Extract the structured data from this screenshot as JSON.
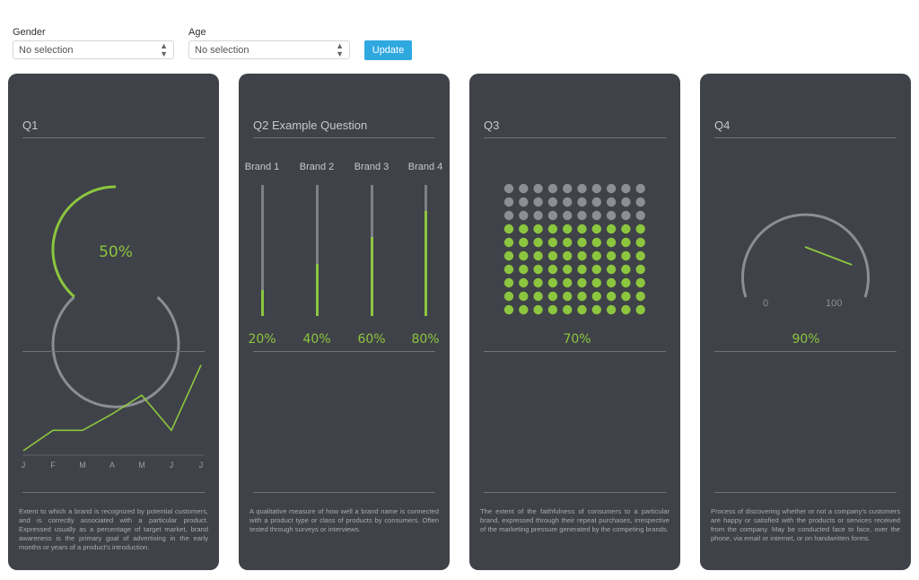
{
  "filters": {
    "gender": {
      "label": "Gender",
      "value": "No selection"
    },
    "age": {
      "label": "Age",
      "value": "No selection"
    },
    "update_label": "Update"
  },
  "colors": {
    "card_bg": "#3f4248",
    "accent": "#8cc63f",
    "button": "#2fa8e0",
    "muted": "#8b8e93"
  },
  "q1": {
    "title": "Q1",
    "gauge_percent": "50%",
    "gauge_value": 50,
    "chart_data": {
      "type": "line",
      "categories": [
        "J",
        "F",
        "M",
        "A",
        "M",
        "J",
        "J"
      ],
      "values": [
        0,
        25,
        25,
        45,
        68,
        25,
        105
      ],
      "title": "",
      "xlabel": "",
      "ylabel": "",
      "ylim": [
        0,
        110
      ],
      "grid": false
    },
    "description": "Extent to which a brand is recognized by potential customers, and is correctly associated with a particular product. Expressed usually as a percentage of target market, brand awareness is the primary goal of advertising in the early months or years of a product's introduction."
  },
  "q2": {
    "title": "Q2 Example Question",
    "brands": [
      {
        "label": "Brand 1",
        "percent": "20%",
        "value": 20
      },
      {
        "label": "Brand 2",
        "percent": "40%",
        "value": 40
      },
      {
        "label": "Brand 3",
        "percent": "60%",
        "value": 60
      },
      {
        "label": "Brand 4",
        "percent": "80%",
        "value": 80
      }
    ],
    "description": "A qualitative measure of how well a brand name is connected with a product type or class of products by consumers. Often tested through surveys or interviews."
  },
  "q3": {
    "title": "Q3",
    "percent": "70%",
    "value": 70,
    "dots_total": 100,
    "description": "The extent of the faithfulness of consumers to a particular brand, expressed through their repeat purchases, irrespective of the marketing pressure generated by the competing brands."
  },
  "q4": {
    "title": "Q4",
    "percent": "90%",
    "value": 90,
    "scale_min": "0",
    "scale_max": "100",
    "description": "Process of discovering whether or not a company's customers are happy or satisfied with the products or services received from the company. May be conducted face to face, over the phone, via email or internet, or on handwritten forms."
  }
}
